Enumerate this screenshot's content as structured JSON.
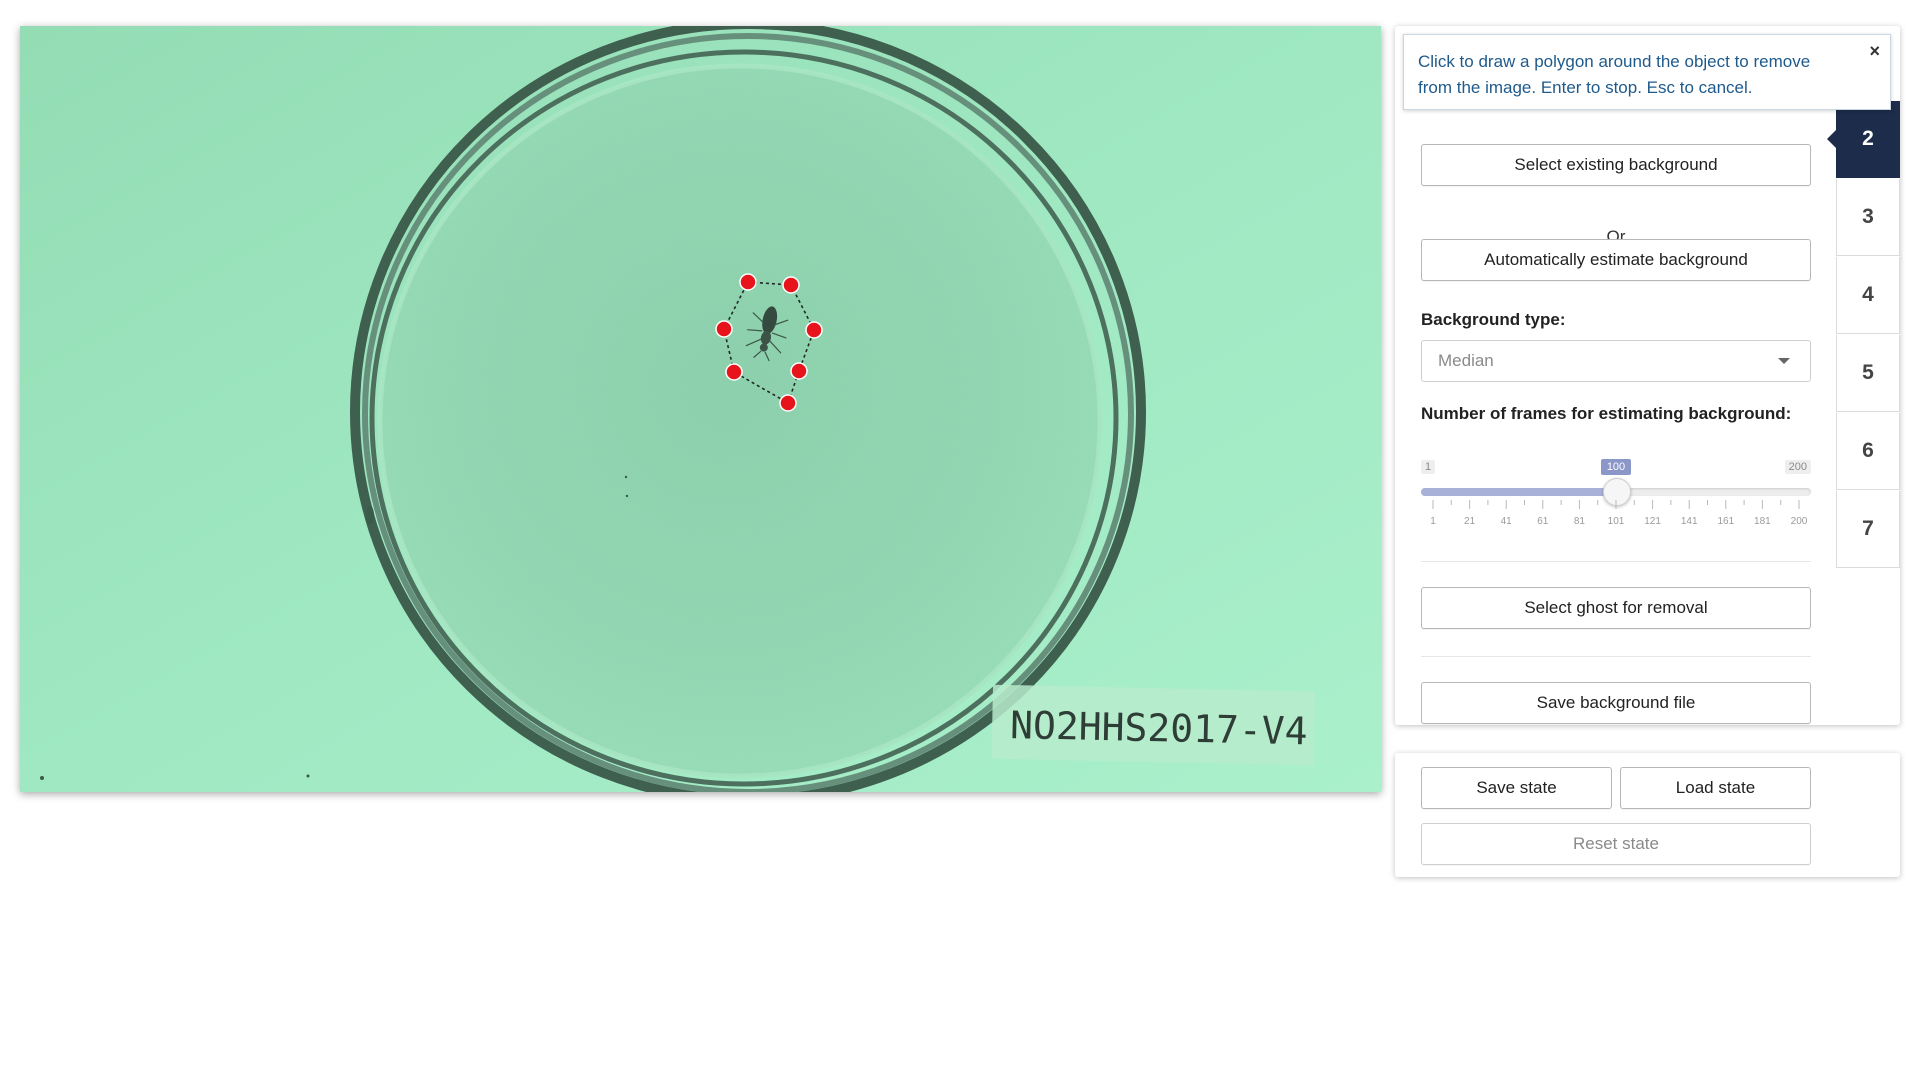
{
  "image": {
    "label_text": "NO2HHS2017-V4"
  },
  "tooltip": {
    "text": "Click to draw a polygon around the object to remove from the image. Enter to stop. Esc to cancel.",
    "close": "×"
  },
  "background": {
    "select_existing": "Select existing background",
    "or": "Or",
    "auto_estimate": "Automatically estimate background",
    "type_label": "Background type:",
    "type_value": "Median",
    "frames_label": "Number of frames for estimating background:",
    "frames_min": "1",
    "frames_max": "200",
    "frames_value": "100",
    "frames_fraction": 0.5,
    "frames_ticks": [
      "1",
      "21",
      "41",
      "61",
      "81",
      "101",
      "121",
      "141",
      "161",
      "181",
      "200"
    ],
    "select_ghost": "Select ghost for removal",
    "save_file": "Save background file"
  },
  "steps": [
    "2",
    "3",
    "4",
    "5",
    "6",
    "7"
  ],
  "active_step": "2",
  "state": {
    "save": "Save state",
    "load": "Load state",
    "reset": "Reset state"
  },
  "colors": {
    "accent_dark": "#1d2c4a",
    "tooltip_text": "#1f5a8c",
    "polygon_vertex": "#e8141b",
    "image_tint": "#9ce6bd"
  }
}
